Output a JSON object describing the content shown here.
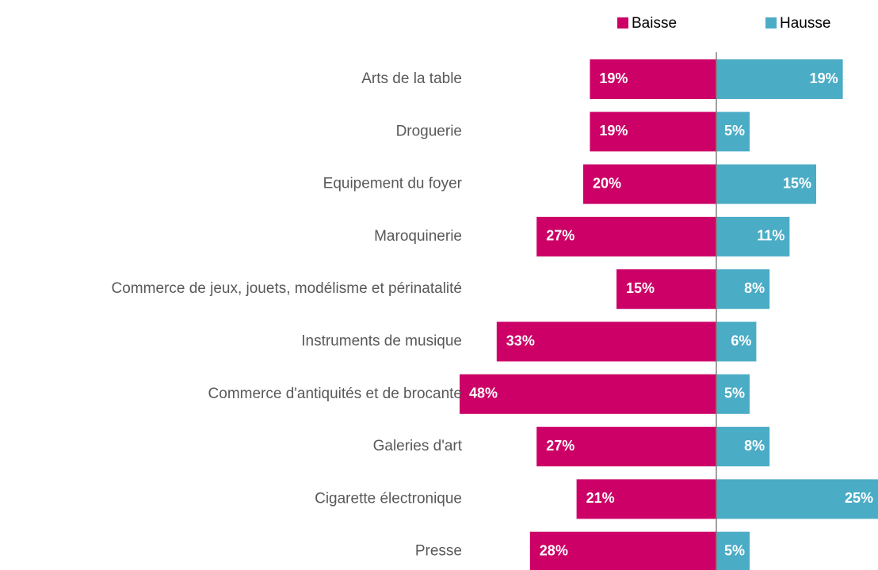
{
  "chart_data": {
    "type": "diverging-bar",
    "categories": [
      "Arts de la table",
      "Droguerie",
      "Equipement du foyer",
      "Maroquinerie",
      "Commerce de jeux, jouets, modélisme et périnatalité",
      "Instruments de musique",
      "Commerce d'antiquités et de brocante",
      "Galeries d'art",
      "Cigarette électronique",
      "Presse"
    ],
    "series": [
      {
        "name": "Baisse",
        "color": "#cc0066",
        "values": [
          19,
          19,
          20,
          27,
          15,
          33,
          48,
          27,
          21,
          28
        ],
        "value_labels": [
          "19%",
          "19%",
          "20%",
          "27%",
          "15%",
          "33%",
          "48%",
          "27%",
          "21%",
          "28%"
        ]
      },
      {
        "name": "Hausse",
        "color": "#4bacc6",
        "values": [
          19,
          5,
          15,
          11,
          8,
          6,
          5,
          8,
          25,
          5
        ],
        "value_labels": [
          "19%",
          "5%",
          "15%",
          "11%",
          "8%",
          "6%",
          "5%",
          "8%",
          "25%",
          "5%"
        ]
      }
    ],
    "legend": "top"
  }
}
